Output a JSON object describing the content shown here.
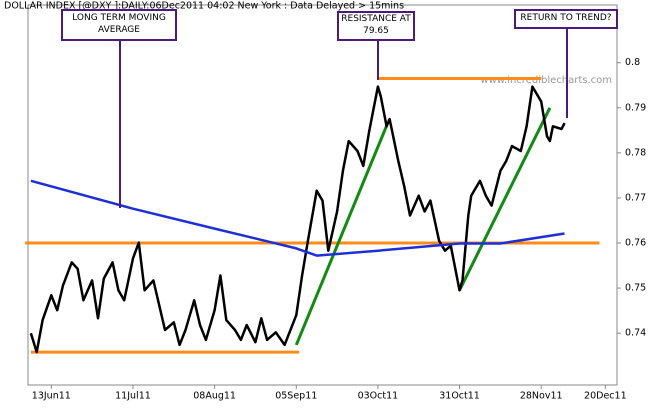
{
  "header": "DOLLAR INDEX [@DXY ]:DAILY:06Dec2011 04:02 New York  : Data Delayed > 15mins",
  "watermark": "www.incrediblecharts.com",
  "chart_data": {
    "type": "line",
    "xlim": [
      "2011-06-05",
      "2011-12-24"
    ],
    "xticks": [
      {
        "value": "2011-06-13",
        "label": "13Jun11"
      },
      {
        "value": "2011-07-11",
        "label": "11Jul11"
      },
      {
        "value": "2011-08-08",
        "label": "08Aug11"
      },
      {
        "value": "2011-09-05",
        "label": "05Sep11"
      },
      {
        "value": "2011-10-03",
        "label": "03Oct11"
      },
      {
        "value": "2011-10-31",
        "label": "31Oct11"
      },
      {
        "value": "2011-11-28",
        "label": "28Nov11"
      },
      {
        "value": "2011-12-20",
        "label": "20Dec11"
      }
    ],
    "ylim": [
      0.7285,
      0.8128
    ],
    "yticks": [
      0.74,
      0.75,
      0.76,
      0.77,
      0.78,
      0.79,
      0.8
    ],
    "series": [
      {
        "color": "#000000",
        "x": [
          "2011-06-06",
          "2011-06-08",
          "2011-06-10",
          "2011-06-13",
          "2011-06-15",
          "2011-06-17",
          "2011-06-20",
          "2011-06-22",
          "2011-06-24",
          "2011-06-27",
          "2011-06-29",
          "2011-07-01",
          "2011-07-04",
          "2011-07-06",
          "2011-07-08",
          "2011-07-11",
          "2011-07-13",
          "2011-07-15",
          "2011-07-18",
          "2011-07-20",
          "2011-07-22",
          "2011-07-25",
          "2011-07-27",
          "2011-07-29",
          "2011-08-01",
          "2011-08-03",
          "2011-08-05",
          "2011-08-08",
          "2011-08-10",
          "2011-08-12",
          "2011-08-15",
          "2011-08-17",
          "2011-08-19",
          "2011-08-22",
          "2011-08-24",
          "2011-08-26",
          "2011-08-29",
          "2011-09-01",
          "2011-09-05",
          "2011-09-07",
          "2011-09-09",
          "2011-09-12",
          "2011-09-14",
          "2011-09-16",
          "2011-09-19",
          "2011-09-21",
          "2011-09-23",
          "2011-09-26",
          "2011-09-28",
          "2011-09-30",
          "2011-10-03",
          "2011-10-04",
          "2011-10-06",
          "2011-10-07",
          "2011-10-10",
          "2011-10-12",
          "2011-10-14",
          "2011-10-17",
          "2011-10-19",
          "2011-10-21",
          "2011-10-24",
          "2011-10-26",
          "2011-10-28",
          "2011-10-31",
          "2011-11-01",
          "2011-11-03",
          "2011-11-04",
          "2011-11-07",
          "2011-11-09",
          "2011-11-11",
          "2011-11-14",
          "2011-11-16",
          "2011-11-18",
          "2011-11-21",
          "2011-11-23",
          "2011-11-25",
          "2011-11-28",
          "2011-11-30",
          "2011-12-01",
          "2011-12-02",
          "2011-12-05",
          "2011-12-06"
        ],
        "values": [
          0.74,
          0.7358,
          0.7429,
          0.7484,
          0.7451,
          0.7506,
          0.7557,
          0.7543,
          0.7473,
          0.7517,
          0.7433,
          0.7521,
          0.7557,
          0.7495,
          0.7473,
          0.7566,
          0.7601,
          0.7495,
          0.7517,
          0.7462,
          0.7407,
          0.7424,
          0.7374,
          0.7407,
          0.7473,
          0.7418,
          0.7385,
          0.7451,
          0.7528,
          0.7429,
          0.7407,
          0.7385,
          0.7418,
          0.738,
          0.7433,
          0.7385,
          0.7402,
          0.7374,
          0.744,
          0.7528,
          0.7605,
          0.7716,
          0.7694,
          0.7583,
          0.767,
          0.776,
          0.7826,
          0.7804,
          0.7771,
          0.7848,
          0.7947,
          0.7925,
          0.7859,
          0.7875,
          0.7782,
          0.7727,
          0.7661,
          0.7705,
          0.767,
          0.7694,
          0.7605,
          0.7583,
          0.7594,
          0.7495,
          0.7517,
          0.7661,
          0.7705,
          0.7738,
          0.7705,
          0.7683,
          0.776,
          0.7782,
          0.7815,
          0.7804,
          0.7859,
          0.7947,
          0.7914,
          0.7837,
          0.7826,
          0.7859,
          0.7853,
          0.7866
        ]
      },
      {
        "color": "#1f2fd6",
        "x": [
          "2011-06-06",
          "2011-07-11",
          "2011-08-08",
          "2011-09-05",
          "2011-09-12",
          "2011-10-03",
          "2011-10-31",
          "2011-11-14",
          "2011-12-06"
        ],
        "values": [
          0.7738,
          0.7676,
          0.7632,
          0.7588,
          0.7572,
          0.7583,
          0.7599,
          0.7599,
          0.7621
        ]
      }
    ],
    "overlays": [
      {
        "color": "#ff8c1a",
        "x": [
          "2011-06-06",
          "2011-09-06"
        ],
        "values": [
          0.7358,
          0.7358
        ]
      },
      {
        "color": "#ff8c1a",
        "x": [
          "2011-06-04",
          "2011-12-18"
        ],
        "values": [
          0.76,
          0.76
        ]
      },
      {
        "color": "#ff8c1a",
        "x": [
          "2011-10-03",
          "2011-11-28"
        ],
        "values": [
          0.7965,
          0.7965
        ]
      },
      {
        "color": "#138a13",
        "x": [
          "2011-09-05",
          "2011-10-06"
        ],
        "values": [
          0.7374,
          0.786
        ]
      },
      {
        "color": "#138a13",
        "x": [
          "2011-10-31",
          "2011-12-01"
        ],
        "values": [
          0.7495,
          0.79
        ]
      }
    ],
    "annotations": [
      "LONG TERM MOVING AVERAGE",
      "RESISTANCE AT 79.65",
      "RETURN TO TREND?"
    ]
  }
}
